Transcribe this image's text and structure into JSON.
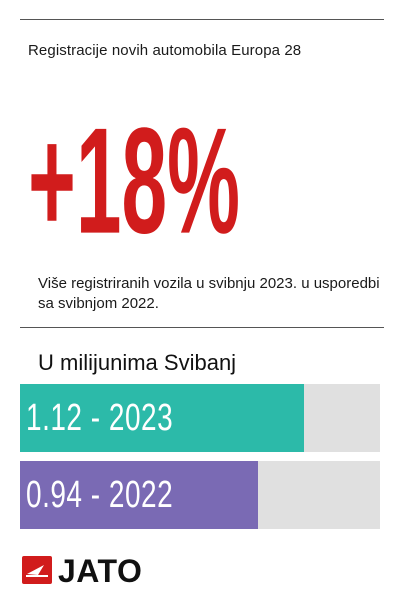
{
  "header": {
    "subtitle": "Registracije novih automobila Europa 28",
    "headline": "+18%",
    "description": "Više registriranih vozila u svibnju 2023. u usporedbi sa svibnjom 2022."
  },
  "chart_data": {
    "type": "bar",
    "title": "U milijunima Svibanj",
    "orientation": "horizontal",
    "categories": [
      "2023",
      "2022"
    ],
    "values": [
      1.12,
      0.94
    ],
    "labels": [
      "1.12 - 2023",
      "0.94 - 2022"
    ],
    "xlim": [
      0,
      1.42
    ],
    "grid": false,
    "legend": "none"
  },
  "colors": {
    "headline": "#d11c1c",
    "bar_2023": "#2cbaa9",
    "bar_2022": "#7a6ab4",
    "track": "#e0e0e0",
    "logo_red": "#d11c1c"
  },
  "footer": {
    "logo_text": "JATO",
    "logo_icon": "jato-logo-icon"
  }
}
